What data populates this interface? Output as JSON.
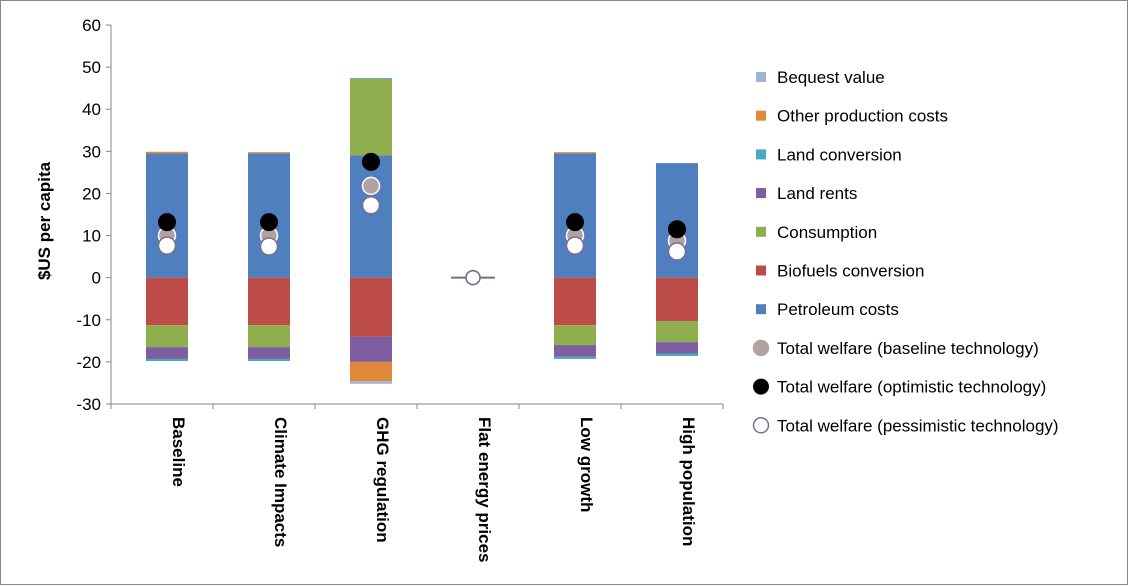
{
  "chart_data": {
    "type": "bar",
    "stacked": true,
    "ylabel": "$US per capita",
    "ylim": [
      -30,
      60
    ],
    "yticks": [
      60,
      50,
      40,
      30,
      20,
      10,
      0,
      -10,
      -20,
      -30
    ],
    "categories": [
      "Baseline",
      "Climate Impacts",
      "GHG regulation",
      "Flat energy prices",
      "Low growth",
      "High population"
    ],
    "series": [
      {
        "name": "Petroleum costs",
        "color": "#4f7fbe",
        "values": [
          29.5,
          29.5,
          29,
          0,
          29.5,
          27.2
        ]
      },
      {
        "name": "Other production costs",
        "color": "#e0883a",
        "values": [
          0.4,
          0.3,
          0,
          0,
          0.3,
          0
        ]
      },
      {
        "name": "Consumption",
        "color": "#8fae4e",
        "values": [
          0,
          0,
          18.2,
          0,
          0,
          0
        ]
      },
      {
        "name": "Land conversion",
        "color": "#4aa8c0",
        "values": [
          0,
          0,
          0.2,
          0,
          0,
          0
        ]
      },
      {
        "name": "Biofuels conversion",
        "color": "#bd4b48",
        "values": [
          -11.3,
          -11.3,
          -14,
          0,
          -11.3,
          -10.3
        ]
      },
      {
        "name": "Consumption",
        "color": "#8fae4e",
        "values": [
          -5.2,
          -5.2,
          0,
          0,
          -4.7,
          -5
        ]
      },
      {
        "name": "Land rents",
        "color": "#7e5ea1",
        "values": [
          -2.8,
          -2.8,
          -6,
          0,
          -2.8,
          -2.7
        ]
      },
      {
        "name": "Other production costs",
        "color": "#e0883a",
        "values": [
          0,
          0,
          -4.6,
          0,
          0,
          0
        ]
      },
      {
        "name": "Bequest value",
        "color": "#9db3dd",
        "values": [
          0,
          0,
          -0.6,
          0,
          0,
          0
        ]
      },
      {
        "name": "Land conversion",
        "color": "#4aa8c0",
        "values": [
          -0.5,
          -0.5,
          0,
          0,
          -0.5,
          -0.6
        ]
      }
    ],
    "markers": [
      {
        "name": "Total welfare (baseline technology)",
        "style": "grey",
        "values": [
          10,
          10,
          21.8,
          0,
          10,
          8.8
        ]
      },
      {
        "name": "Total welfare (optimistic technology)",
        "style": "black",
        "values": [
          13.2,
          13.2,
          27.5,
          0,
          13.2,
          11.5
        ]
      },
      {
        "name": "Total welfare (pessimistic technology)",
        "style": "white",
        "values": [
          7.6,
          7.4,
          17.2,
          0,
          7.6,
          6.2
        ]
      }
    ],
    "legend": {
      "position": "right",
      "items": [
        {
          "label": "Bequest value",
          "kind": "square",
          "color": "#9db3dd"
        },
        {
          "label": "Other production costs",
          "kind": "square",
          "color": "#e0883a"
        },
        {
          "label": "Land conversion",
          "kind": "square",
          "color": "#4aa8c0"
        },
        {
          "label": "Land rents",
          "kind": "square",
          "color": "#7e5ea1"
        },
        {
          "label": "Consumption",
          "kind": "square",
          "color": "#8fae4e"
        },
        {
          "label": "Biofuels conversion",
          "kind": "square",
          "color": "#bd4b48"
        },
        {
          "label": "Petroleum costs",
          "kind": "square",
          "color": "#4f7fbe"
        },
        {
          "label": "Total welfare (baseline technology)",
          "kind": "circle-grey"
        },
        {
          "label": "Total welfare (optimistic technology)",
          "kind": "circle-black"
        },
        {
          "label": "Total welfare (pessimistic technology)",
          "kind": "circle-white"
        }
      ]
    },
    "grid": false
  }
}
